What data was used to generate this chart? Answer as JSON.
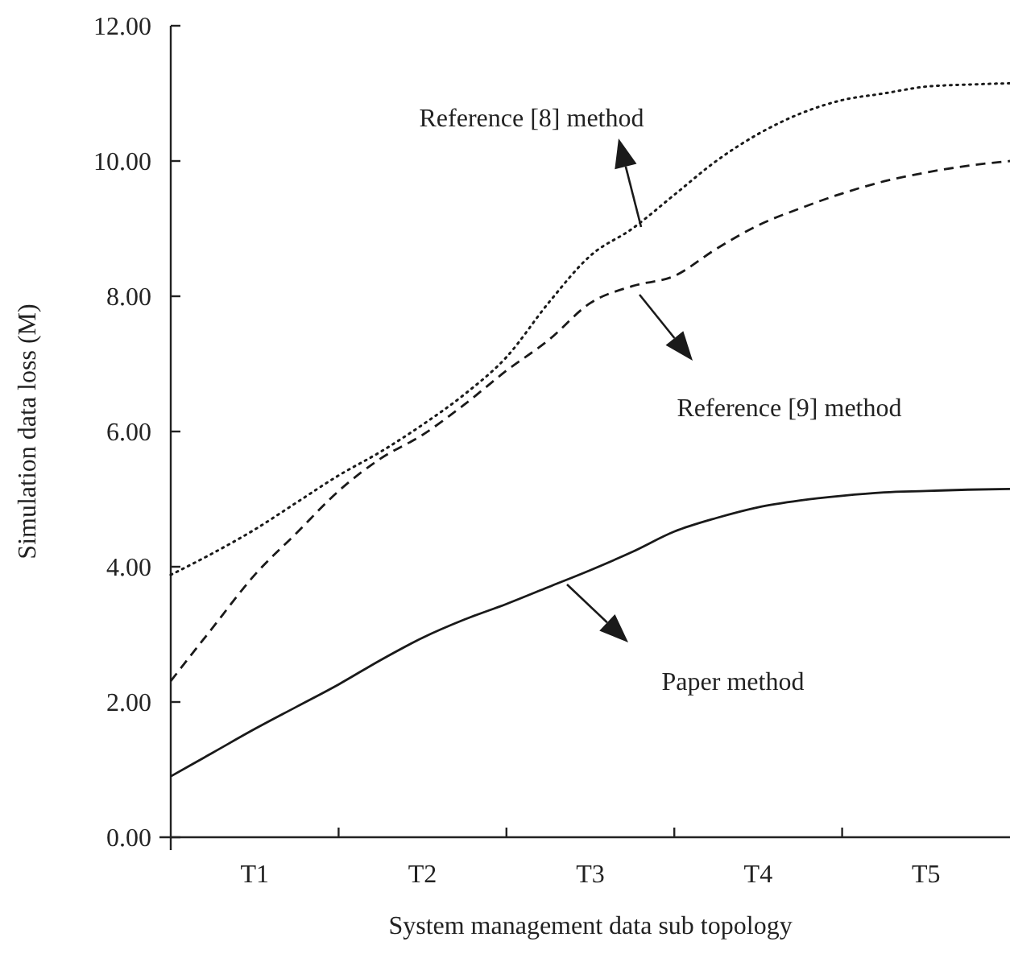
{
  "chart_data": {
    "type": "line",
    "xlabel": "System management data sub topology",
    "ylabel": "Simulation data loss (M)",
    "categories": [
      null,
      null,
      "T1",
      null,
      null,
      null,
      "T2",
      null,
      null,
      null,
      "T3",
      null,
      null,
      null,
      "T4",
      null,
      null,
      null,
      "T5",
      null,
      null
    ],
    "ylim": [
      0,
      12
    ],
    "yticks": [
      {
        "value": 0,
        "label": "0.00"
      },
      {
        "value": 2,
        "label": "2.00"
      },
      {
        "value": 4,
        "label": "4.00"
      },
      {
        "value": 6,
        "label": "6.00"
      },
      {
        "value": 8,
        "label": "8.00"
      },
      {
        "value": 10,
        "label": "10.00"
      },
      {
        "value": 12,
        "label": "12.00"
      }
    ],
    "marker": "none",
    "series": [
      {
        "color": "#1a1a1a",
        "line_style": "dotted",
        "values": [
          3.88,
          4.2,
          4.55,
          4.95,
          5.35,
          5.7,
          6.1,
          6.55,
          7.1,
          7.9,
          8.6,
          9.0,
          9.5,
          10.0,
          10.4,
          10.7,
          10.9,
          11.0,
          11.1,
          11.13,
          11.15
        ]
      },
      {
        "color": "#1a1a1a",
        "line_style": "dashed",
        "values": [
          2.31,
          3.1,
          3.88,
          4.5,
          5.12,
          5.6,
          5.95,
          6.4,
          6.9,
          7.35,
          7.9,
          8.15,
          8.3,
          8.7,
          9.05,
          9.3,
          9.52,
          9.7,
          9.83,
          9.93,
          10.0
        ]
      },
      {
        "color": "#1a1a1a",
        "line_style": "solid",
        "values": [
          0.9,
          1.25,
          1.6,
          1.93,
          2.26,
          2.62,
          2.95,
          3.22,
          3.45,
          3.7,
          3.95,
          4.22,
          4.52,
          4.72,
          4.88,
          4.98,
          5.05,
          5.1,
          5.12,
          5.14,
          5.15
        ]
      }
    ],
    "annotations": [
      "Reference [8] method",
      "Reference [9] method",
      "Paper method"
    ]
  }
}
